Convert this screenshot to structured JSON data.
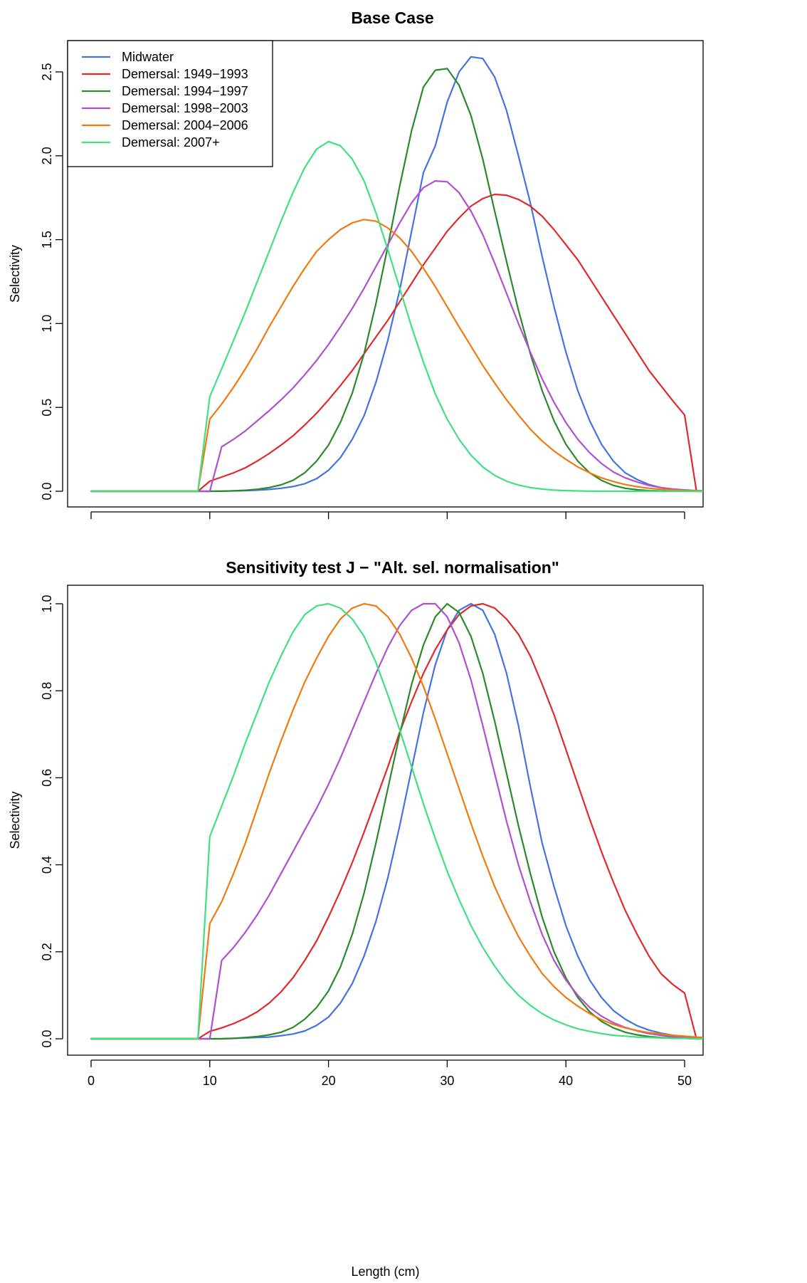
{
  "chart_data": [
    {
      "type": "line",
      "title": "Base Case",
      "xlabel": "",
      "ylabel": "Selectivity",
      "xlim": [
        0,
        52
      ],
      "ylim": [
        0,
        2.6
      ],
      "xticks": [
        0,
        10,
        20,
        30,
        40,
        50
      ],
      "xtick_labels_shown": false,
      "yticks": [
        0.0,
        0.5,
        1.0,
        1.5,
        2.0,
        2.5
      ],
      "ytick_labels": [
        "0.0",
        "0.5",
        "1.0",
        "1.5",
        "2.0",
        "2.5"
      ],
      "legend": "top-left",
      "grid": false,
      "x": [
        0,
        1,
        2,
        3,
        4,
        5,
        6,
        7,
        8,
        9,
        10,
        11,
        12,
        13,
        14,
        15,
        16,
        17,
        18,
        19,
        20,
        21,
        22,
        23,
        24,
        25,
        26,
        27,
        28,
        29,
        30,
        31,
        32,
        33,
        34,
        35,
        36,
        37,
        38,
        39,
        40,
        41,
        42,
        43,
        44,
        45,
        46,
        47,
        48,
        49,
        50,
        51,
        52
      ],
      "series": [
        {
          "name": "Midwater",
          "color": "#4472e0",
          "values": [
            0,
            0,
            0,
            0,
            0,
            0,
            0,
            0,
            0,
            0,
            0,
            0.001,
            0.002,
            0.004,
            0.007,
            0.011,
            0.018,
            0.028,
            0.045,
            0.075,
            0.125,
            0.2,
            0.31,
            0.45,
            0.65,
            0.9,
            1.2,
            1.55,
            1.9,
            2.06,
            2.32,
            2.5,
            2.59,
            2.58,
            2.47,
            2.27,
            2.0,
            1.72,
            1.4,
            1.1,
            0.83,
            0.6,
            0.42,
            0.28,
            0.18,
            0.11,
            0.07,
            0.04,
            0.022,
            0.012,
            0.006,
            0.003,
            0.001
          ]
        },
        {
          "name": "Demersal: 1949−1993",
          "color": "#e02a2a",
          "values": [
            0,
            0,
            0,
            0,
            0,
            0,
            0,
            0,
            0,
            0,
            0.06,
            0.085,
            0.11,
            0.14,
            0.18,
            0.225,
            0.275,
            0.33,
            0.395,
            0.465,
            0.545,
            0.63,
            0.72,
            0.82,
            0.92,
            1.02,
            1.13,
            1.24,
            1.35,
            1.45,
            1.55,
            1.63,
            1.7,
            1.745,
            1.77,
            1.765,
            1.74,
            1.7,
            1.64,
            1.56,
            1.47,
            1.38,
            1.27,
            1.16,
            1.05,
            0.94,
            0.83,
            0.72,
            0.63,
            0.54,
            0.455,
            0,
            0
          ]
        },
        {
          "name": "Demersal: 1994−1997",
          "color": "#2a8a2a",
          "values": [
            0,
            0,
            0,
            0,
            0,
            0,
            0,
            0,
            0,
            0,
            0,
            0.001,
            0.003,
            0.006,
            0.012,
            0.022,
            0.038,
            0.065,
            0.11,
            0.18,
            0.275,
            0.41,
            0.585,
            0.82,
            1.12,
            1.46,
            1.82,
            2.15,
            2.41,
            2.51,
            2.52,
            2.42,
            2.24,
            1.98,
            1.67,
            1.37,
            1.08,
            0.82,
            0.6,
            0.42,
            0.28,
            0.18,
            0.11,
            0.065,
            0.035,
            0.018,
            0.009,
            0.004,
            0.002,
            0.001,
            0,
            0,
            0
          ]
        },
        {
          "name": "Demersal: 1998−2003",
          "color": "#b050d0",
          "values": [
            0,
            0,
            0,
            0,
            0,
            0,
            0,
            0,
            0,
            0,
            0,
            0.265,
            0.31,
            0.36,
            0.42,
            0.48,
            0.545,
            0.615,
            0.695,
            0.78,
            0.875,
            0.98,
            1.09,
            1.21,
            1.34,
            1.47,
            1.6,
            1.72,
            1.81,
            1.85,
            1.845,
            1.78,
            1.67,
            1.53,
            1.36,
            1.18,
            1.0,
            0.83,
            0.67,
            0.53,
            0.41,
            0.31,
            0.23,
            0.165,
            0.115,
            0.08,
            0.055,
            0.035,
            0.022,
            0.013,
            0.008,
            0.004,
            0.002
          ]
        },
        {
          "name": "Demersal: 2004−2006",
          "color": "#f07a10",
          "values": [
            0,
            0,
            0,
            0,
            0,
            0,
            0,
            0,
            0,
            0,
            0.43,
            0.52,
            0.62,
            0.73,
            0.85,
            0.98,
            1.1,
            1.22,
            1.33,
            1.43,
            1.5,
            1.56,
            1.6,
            1.62,
            1.61,
            1.57,
            1.51,
            1.43,
            1.33,
            1.22,
            1.1,
            0.98,
            0.865,
            0.75,
            0.645,
            0.545,
            0.455,
            0.37,
            0.3,
            0.24,
            0.19,
            0.145,
            0.11,
            0.08,
            0.058,
            0.04,
            0.027,
            0.018,
            0.012,
            0.008,
            0.005,
            0.003,
            0.002
          ]
        },
        {
          "name": "Demersal: 2007+",
          "color": "#40e080",
          "values": [
            0,
            0,
            0,
            0,
            0,
            0,
            0,
            0,
            0,
            0,
            0.565,
            0.73,
            0.9,
            1.07,
            1.25,
            1.43,
            1.61,
            1.78,
            1.93,
            2.04,
            2.085,
            2.06,
            1.98,
            1.85,
            1.66,
            1.44,
            1.21,
            0.98,
            0.77,
            0.58,
            0.43,
            0.31,
            0.215,
            0.145,
            0.095,
            0.06,
            0.037,
            0.022,
            0.013,
            0.007,
            0.004,
            0.002,
            0.001,
            0,
            0,
            0,
            0,
            0,
            0,
            0,
            0,
            0,
            0
          ]
        }
      ]
    },
    {
      "type": "line",
      "title": "Sensitivity test J − \"Alt. sel. normalisation\"",
      "xlabel": "Length (cm)",
      "ylabel": "Selectivity",
      "xlim": [
        0,
        52
      ],
      "ylim": [
        0,
        1.0
      ],
      "xticks": [
        0,
        10,
        20,
        30,
        40,
        50
      ],
      "xtick_labels": [
        "0",
        "10",
        "20",
        "30",
        "40",
        "50"
      ],
      "yticks": [
        0.0,
        0.2,
        0.4,
        0.6,
        0.8,
        1.0
      ],
      "ytick_labels": [
        "0.0",
        "0.2",
        "0.4",
        "0.6",
        "0.8",
        "1.0"
      ],
      "grid": false,
      "x": [
        0,
        1,
        2,
        3,
        4,
        5,
        6,
        7,
        8,
        9,
        10,
        11,
        12,
        13,
        14,
        15,
        16,
        17,
        18,
        19,
        20,
        21,
        22,
        23,
        24,
        25,
        26,
        27,
        28,
        29,
        30,
        31,
        32,
        33,
        34,
        35,
        36,
        37,
        38,
        39,
        40,
        41,
        42,
        43,
        44,
        45,
        46,
        47,
        48,
        49,
        50,
        51,
        52
      ],
      "series": [
        {
          "name": "Midwater",
          "color": "#4472e0",
          "values": [
            0,
            0,
            0,
            0,
            0,
            0,
            0,
            0,
            0,
            0,
            0,
            0,
            0.001,
            0.002,
            0.003,
            0.004,
            0.007,
            0.011,
            0.018,
            0.031,
            0.05,
            0.082,
            0.127,
            0.19,
            0.27,
            0.37,
            0.49,
            0.62,
            0.75,
            0.86,
            0.94,
            0.985,
            1.0,
            0.985,
            0.93,
            0.84,
            0.72,
            0.58,
            0.45,
            0.35,
            0.26,
            0.19,
            0.135,
            0.095,
            0.065,
            0.045,
            0.03,
            0.02,
            0.013,
            0.008,
            0.005,
            0.002,
            0
          ]
        },
        {
          "name": "Demersal: 1949−1993",
          "color": "#e02a2a",
          "values": [
            0,
            0,
            0,
            0,
            0,
            0,
            0,
            0,
            0,
            0,
            0.017,
            0.025,
            0.035,
            0.047,
            0.062,
            0.082,
            0.108,
            0.14,
            0.18,
            0.225,
            0.28,
            0.34,
            0.405,
            0.475,
            0.55,
            0.625,
            0.705,
            0.775,
            0.84,
            0.895,
            0.94,
            0.975,
            0.995,
            1.0,
            0.99,
            0.965,
            0.93,
            0.88,
            0.815,
            0.745,
            0.665,
            0.585,
            0.505,
            0.43,
            0.36,
            0.295,
            0.24,
            0.19,
            0.15,
            0.125,
            0.105,
            0,
            0
          ]
        },
        {
          "name": "Demersal: 1994−1997",
          "color": "#2a8a2a",
          "values": [
            0,
            0,
            0,
            0,
            0,
            0,
            0,
            0,
            0,
            0,
            0,
            0,
            0.001,
            0.003,
            0.005,
            0.009,
            0.015,
            0.026,
            0.045,
            0.072,
            0.11,
            0.165,
            0.24,
            0.335,
            0.45,
            0.575,
            0.7,
            0.815,
            0.905,
            0.97,
            1.0,
            0.98,
            0.925,
            0.84,
            0.73,
            0.61,
            0.49,
            0.38,
            0.28,
            0.2,
            0.14,
            0.095,
            0.062,
            0.04,
            0.025,
            0.015,
            0.009,
            0.005,
            0.003,
            0.002,
            0.001,
            0,
            0
          ]
        },
        {
          "name": "Demersal: 1998−2003",
          "color": "#b050d0",
          "values": [
            0,
            0,
            0,
            0,
            0,
            0,
            0,
            0,
            0,
            0,
            0,
            0.18,
            0.21,
            0.245,
            0.285,
            0.33,
            0.38,
            0.43,
            0.48,
            0.53,
            0.585,
            0.645,
            0.71,
            0.775,
            0.84,
            0.9,
            0.95,
            0.985,
            1.0,
            1.0,
            0.97,
            0.91,
            0.825,
            0.72,
            0.61,
            0.5,
            0.4,
            0.315,
            0.24,
            0.18,
            0.135,
            0.1,
            0.072,
            0.052,
            0.037,
            0.026,
            0.018,
            0.012,
            0.008,
            0.005,
            0.003,
            0.002,
            0.001
          ]
        },
        {
          "name": "Demersal: 2004−2006",
          "color": "#f07a10",
          "values": [
            0,
            0,
            0,
            0,
            0,
            0,
            0,
            0,
            0,
            0,
            0.265,
            0.315,
            0.38,
            0.45,
            0.53,
            0.61,
            0.685,
            0.755,
            0.82,
            0.875,
            0.925,
            0.965,
            0.99,
            1.0,
            0.995,
            0.97,
            0.93,
            0.875,
            0.81,
            0.735,
            0.655,
            0.575,
            0.495,
            0.42,
            0.35,
            0.29,
            0.235,
            0.19,
            0.15,
            0.12,
            0.095,
            0.075,
            0.058,
            0.044,
            0.033,
            0.025,
            0.019,
            0.014,
            0.011,
            0.008,
            0.006,
            0.004,
            0.003
          ]
        },
        {
          "name": "Demersal: 2007+",
          "color": "#40e080",
          "values": [
            0,
            0,
            0,
            0,
            0,
            0,
            0,
            0,
            0,
            0,
            0.465,
            0.535,
            0.605,
            0.68,
            0.75,
            0.82,
            0.88,
            0.935,
            0.975,
            0.995,
            1.0,
            0.99,
            0.965,
            0.925,
            0.865,
            0.79,
            0.71,
            0.625,
            0.54,
            0.46,
            0.385,
            0.32,
            0.26,
            0.21,
            0.167,
            0.13,
            0.1,
            0.077,
            0.058,
            0.043,
            0.032,
            0.023,
            0.017,
            0.012,
            0.008,
            0.006,
            0.004,
            0.003,
            0.002,
            0.001,
            0.001,
            0,
            0
          ]
        }
      ]
    }
  ]
}
